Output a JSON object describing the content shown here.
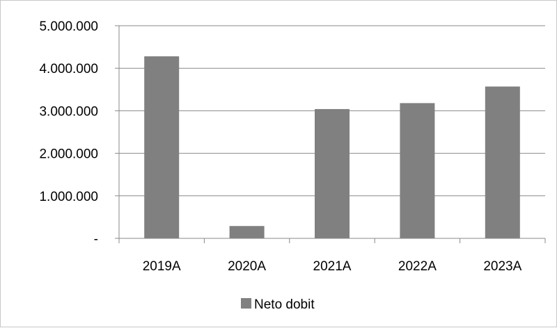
{
  "chart_data": {
    "type": "bar",
    "categories": [
      "2019A",
      "2020A",
      "2021A",
      "2022A",
      "2023A"
    ],
    "series": [
      {
        "name": "Neto dobit",
        "values": [
          4280000,
          290000,
          3040000,
          3180000,
          3570000
        ]
      }
    ],
    "y_tick_labels": [
      "-",
      "1.000.000",
      "2.000.000",
      "3.000.000",
      "4.000.000",
      "5.000.000"
    ],
    "y_ticks": [
      0,
      1000000,
      2000000,
      3000000,
      4000000,
      5000000
    ],
    "ylim": [
      0,
      5000000
    ],
    "title": "",
    "xlabel": "",
    "ylabel": "",
    "grid": true,
    "legend_position": "bottom",
    "bar_color": "#808080",
    "grid_color": "#888888",
    "axis_color": "#888888"
  }
}
